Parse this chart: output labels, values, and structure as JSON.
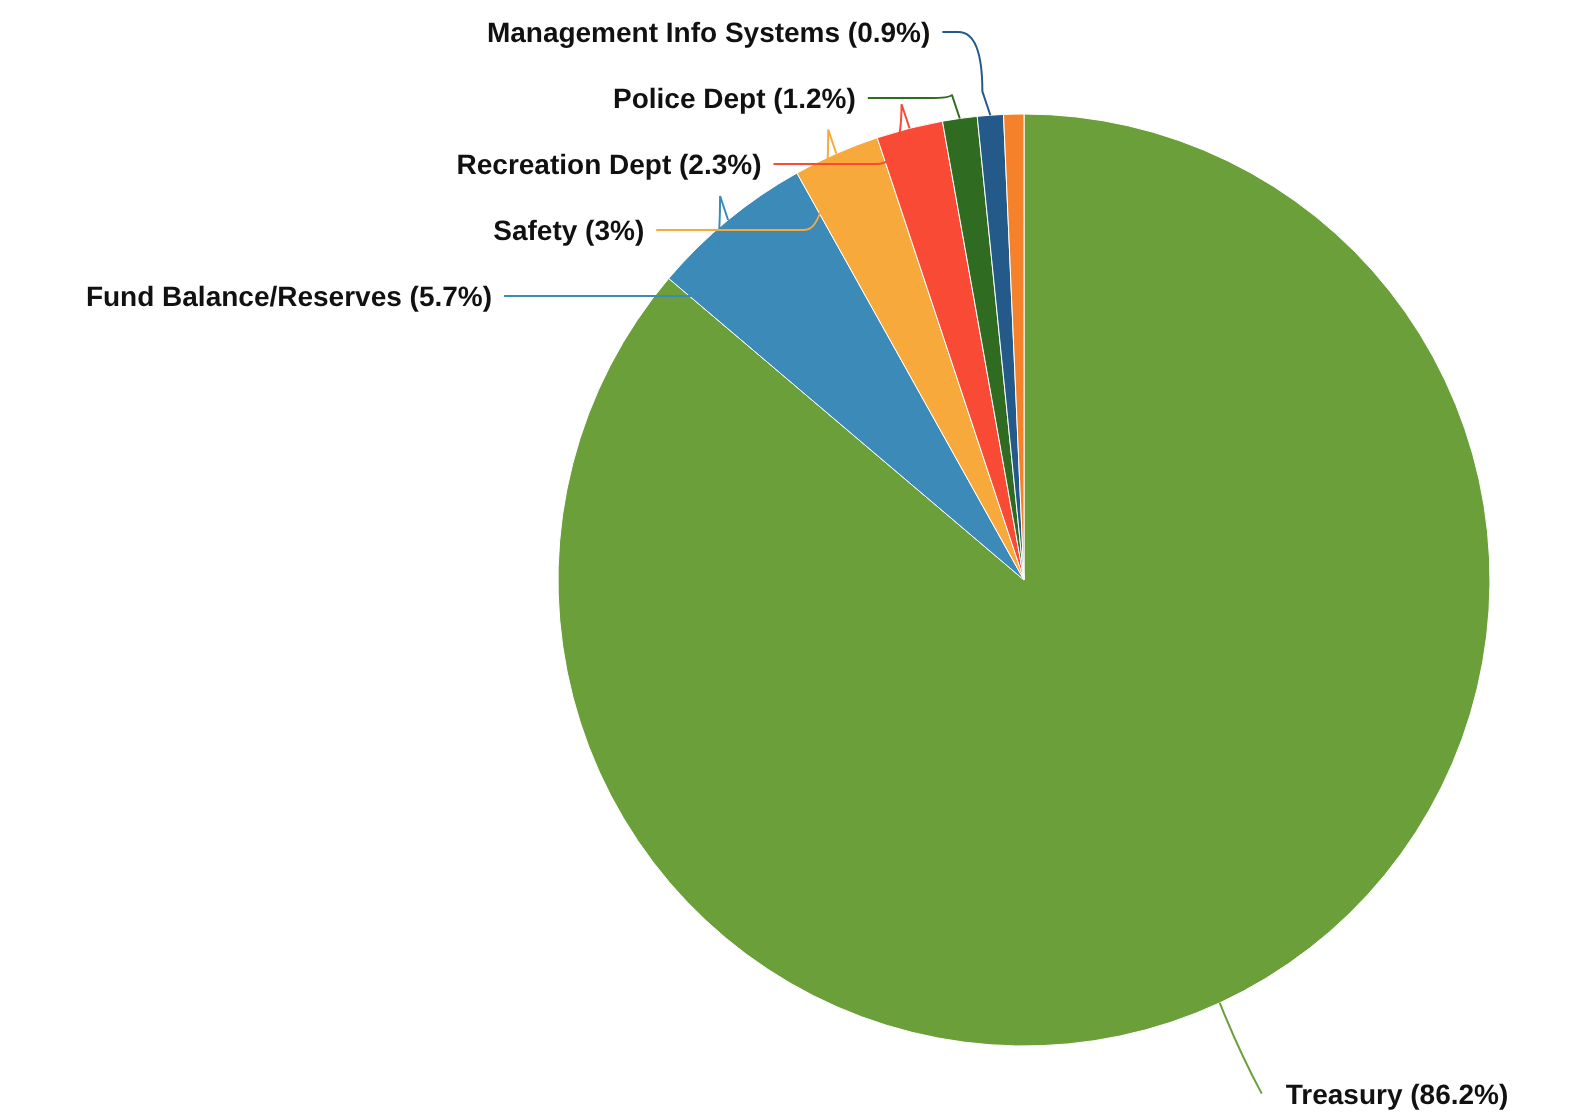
{
  "chart_data": {
    "type": "pie",
    "categories": [
      "Treasury (86.2%)",
      "Fund Balance/Reserves (5.7%)",
      "Safety (3%)",
      "Recreation Dept (2.3%)",
      "Police Dept (1.2%)",
      "Management Info Systems (0.9%)",
      null
    ],
    "values": [
      86.2,
      5.7,
      3,
      2.3,
      1.2,
      0.9,
      0.7
    ],
    "colors": [
      "#6a9f3a",
      "#3b8ab8",
      "#f8a93b",
      "#f94a36",
      "#2f6b20",
      "#245a8a",
      "#f5822a"
    ]
  }
}
